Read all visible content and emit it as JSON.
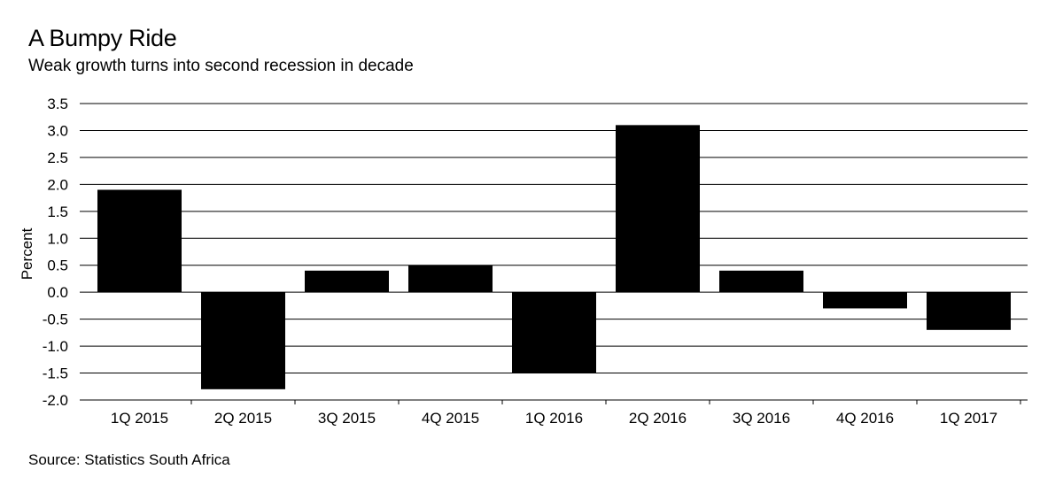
{
  "header": {
    "title": "A Bumpy Ride",
    "subtitle": "Weak growth turns into second recession in decade"
  },
  "footer": {
    "source": "Source: Statistics South Africa"
  },
  "chart_data": {
    "type": "bar",
    "title": "A Bumpy Ride",
    "subtitle": "Weak growth turns into second recession in decade",
    "xlabel": "",
    "ylabel": "Percent",
    "categories": [
      "1Q 2015",
      "2Q 2015",
      "3Q 2015",
      "4Q 2015",
      "1Q 2016",
      "2Q 2016",
      "3Q 2016",
      "4Q 2016",
      "1Q 2017"
    ],
    "values": [
      1.9,
      -1.8,
      0.4,
      0.5,
      -1.5,
      3.1,
      0.4,
      -0.3,
      -0.7
    ],
    "ylim": [
      -2.0,
      3.5
    ],
    "yticks": [
      "3.5",
      "3.0",
      "2.5",
      "2.0",
      "1.5",
      "1.0",
      "0.5",
      "0.0",
      "-0.5",
      "-1.0",
      "-1.5",
      "-2.0"
    ],
    "grid": true,
    "bar_color": "#000000",
    "grid_color": "#000000"
  }
}
